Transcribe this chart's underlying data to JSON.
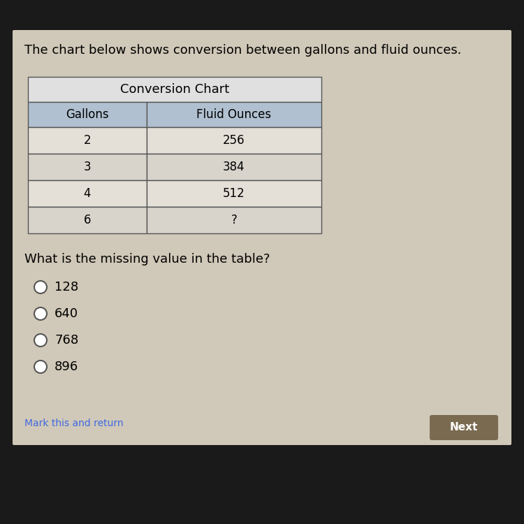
{
  "background_color": "#1a1a1a",
  "card_color": "#d0c8b8",
  "intro_text": "The chart below shows conversion between gallons and fluid ounces.",
  "intro_fontsize": 13,
  "table_title": "Conversion Chart",
  "col1_header": "Gallons",
  "col2_header": "Fluid Ounces",
  "table_data": [
    [
      "2",
      "256"
    ],
    [
      "3",
      "384"
    ],
    [
      "4",
      "512"
    ],
    [
      "6",
      "?"
    ]
  ],
  "header_bg": "#b0c0d0",
  "title_bg": "#e0e0e0",
  "row_bg_even": "#e4e0d8",
  "row_bg_odd": "#d8d4cc",
  "question_text": "What is the missing value in the table?",
  "question_fontsize": 13,
  "choices": [
    "128",
    "640",
    "768",
    "896"
  ],
  "choices_fontsize": 13,
  "bottom_link": "Mark this and return",
  "bottom_btn": "Next",
  "bottom_btn_color": "#7a6a50",
  "link_color": "#4169e1"
}
